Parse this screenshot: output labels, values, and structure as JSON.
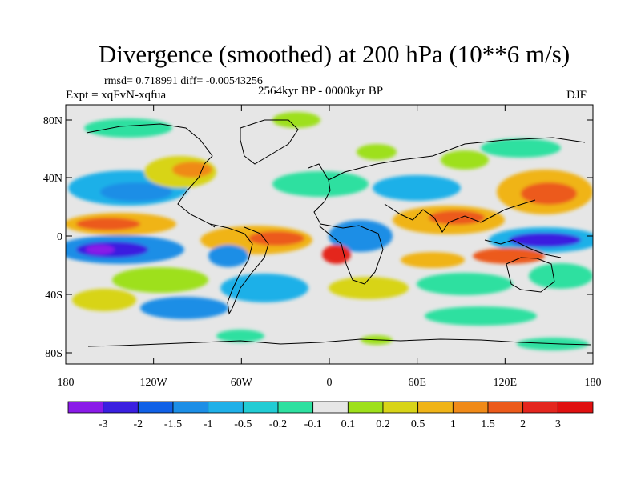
{
  "title": "Divergence (smoothed) at 200 hPa (10**6 m/s)",
  "stats_line": "rmsd= 0.718991 diff= -0.00543256",
  "experiment_line": "Expt = xqFvN-xqfua",
  "period_line": "2564kyr BP - 0000kyr BP",
  "season": "DJF",
  "lat_labels": [
    "80N",
    "40N",
    "0",
    "40S",
    "80S"
  ],
  "lon_labels": [
    "180",
    "120W",
    "60W",
    "0",
    "60E",
    "120E",
    "180"
  ],
  "colorbar": {
    "labels": [
      "-3",
      "-2",
      "-1.5",
      "-1",
      "-0.5",
      "-0.2",
      "-0.1",
      "0.1",
      "0.2",
      "0.5",
      "1",
      "1.5",
      "2",
      "3"
    ],
    "colors": [
      "#8a1ae8",
      "#3a1fe0",
      "#1060e6",
      "#1c8ee6",
      "#1fb0e8",
      "#22ccd4",
      "#2ee0a0",
      "#e6e6e6",
      "#9ee01a",
      "#d8d418",
      "#f0b418",
      "#f08a18",
      "#ec5a1a",
      "#e4261e",
      "#e01010"
    ]
  }
}
